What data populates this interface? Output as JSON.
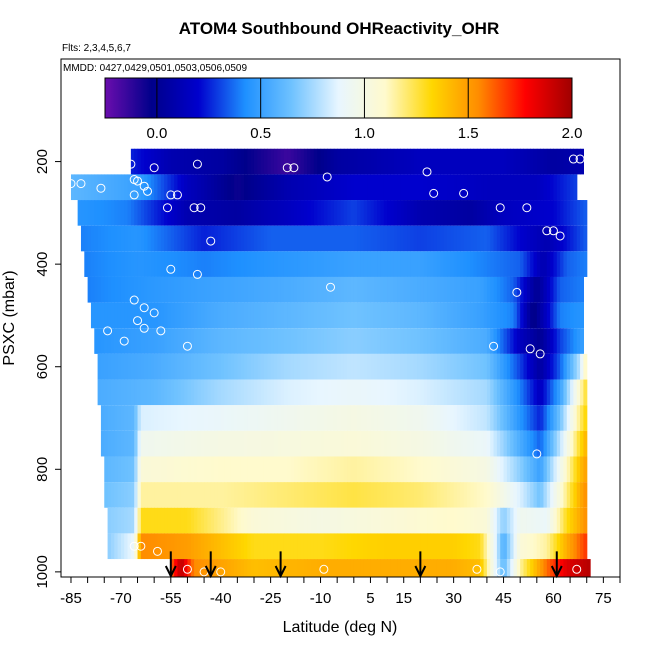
{
  "chart_data": {
    "type": "heatmap",
    "title": "ATOM4 Southbound OHReactivity_OHR",
    "flights_text": "Flts: 2,3,4,5,6,7",
    "dates_text": "MMDD: 0427,0429,0501,0503,0506,0509",
    "xlabel": "Latitude (deg N)",
    "ylabel": "PSXC (mbar)",
    "xlim": [
      -88,
      80
    ],
    "ylim": [
      1010,
      0
    ],
    "x_tick_labels": [
      "-85",
      "-70",
      "-55",
      "-40",
      "-25",
      "-10",
      "5",
      "15",
      "30",
      "45",
      "60",
      "75"
    ],
    "x_tick_values": [
      -85,
      -70,
      -55,
      -40,
      -25,
      -10,
      5,
      15,
      30,
      45,
      60,
      75
    ],
    "y_tick_labels": [
      "200",
      "400",
      "600",
      "800",
      "1000"
    ],
    "y_tick_values": [
      200,
      400,
      600,
      800,
      1000
    ],
    "colorbar": {
      "tick_labels": [
        "0.0",
        "0.5",
        "1.0",
        "1.5",
        "2.0"
      ],
      "tick_values": [
        0.0,
        0.5,
        1.0,
        1.5,
        2.0
      ],
      "range": [
        -0.25,
        2.0
      ],
      "colors": [
        "#6a0dad",
        "#00008b",
        "#0000cd",
        "#1e90ff",
        "#6fc2ff",
        "#e8f6ff",
        "#fffacd",
        "#ffd700",
        "#ff8c00",
        "#ff0000",
        "#a00000"
      ]
    },
    "bands": [
      {
        "p": 200,
        "lat_min": -67,
        "lat_max": 69,
        "edges": [
          [
            -67,
            0.25
          ],
          [
            -55,
            0.1
          ],
          [
            -40,
            0.05
          ],
          [
            -20,
            -0.15
          ],
          [
            -5,
            0.05
          ],
          [
            20,
            0.15
          ],
          [
            35,
            0.15
          ],
          [
            45,
            0.15
          ],
          [
            60,
            0.05
          ],
          [
            69,
            0.1
          ]
        ]
      },
      {
        "p": 250,
        "lat_min": -85,
        "lat_max": 67,
        "edges": [
          [
            -85,
            0.6
          ],
          [
            -65,
            0.5
          ],
          [
            -50,
            0.15
          ],
          [
            -35,
            -0.05
          ],
          [
            -20,
            0.1
          ],
          [
            0,
            0.2
          ],
          [
            20,
            0.2
          ],
          [
            40,
            0.15
          ],
          [
            55,
            0.15
          ],
          [
            67,
            0.3
          ]
        ]
      },
      {
        "p": 300,
        "lat_min": -83,
        "lat_max": 70,
        "edges": [
          [
            -83,
            0.45
          ],
          [
            -68,
            0.4
          ],
          [
            -50,
            0.1
          ],
          [
            -35,
            0.05
          ],
          [
            -20,
            0.15
          ],
          [
            0,
            0.3
          ],
          [
            20,
            0.1
          ],
          [
            35,
            0.05
          ],
          [
            45,
            0.15
          ],
          [
            60,
            0.2
          ],
          [
            70,
            0.35
          ]
        ]
      },
      {
        "p": 350,
        "lat_min": -82,
        "lat_max": 70,
        "edges": [
          [
            -82,
            0.4
          ],
          [
            -65,
            0.45
          ],
          [
            -45,
            0.25
          ],
          [
            -25,
            0.35
          ],
          [
            0,
            0.35
          ],
          [
            20,
            0.3
          ],
          [
            40,
            0.35
          ],
          [
            50,
            0.2
          ],
          [
            58,
            0.1
          ],
          [
            70,
            0.35
          ]
        ]
      },
      {
        "p": 400,
        "lat_min": -81,
        "lat_max": 70,
        "edges": [
          [
            -81,
            0.4
          ],
          [
            -65,
            0.45
          ],
          [
            -45,
            0.4
          ],
          [
            -25,
            0.45
          ],
          [
            0,
            0.5
          ],
          [
            20,
            0.5
          ],
          [
            40,
            0.4
          ],
          [
            50,
            0.35
          ],
          [
            57,
            0.1
          ],
          [
            64,
            0.35
          ],
          [
            70,
            0.4
          ]
        ]
      },
      {
        "p": 450,
        "lat_min": -80,
        "lat_max": 69,
        "edges": [
          [
            -80,
            0.4
          ],
          [
            -65,
            0.45
          ],
          [
            -45,
            0.5
          ],
          [
            -20,
            0.55
          ],
          [
            0,
            0.6
          ],
          [
            20,
            0.55
          ],
          [
            38,
            0.5
          ],
          [
            48,
            0.35
          ],
          [
            55,
            0.0
          ],
          [
            62,
            0.35
          ],
          [
            69,
            0.4
          ]
        ]
      },
      {
        "p": 500,
        "lat_min": -79,
        "lat_max": 69,
        "edges": [
          [
            -79,
            0.45
          ],
          [
            -60,
            0.45
          ],
          [
            -40,
            0.55
          ],
          [
            -20,
            0.6
          ],
          [
            0,
            0.65
          ],
          [
            20,
            0.6
          ],
          [
            38,
            0.5
          ],
          [
            48,
            0.4
          ],
          [
            54,
            -0.05
          ],
          [
            62,
            0.4
          ],
          [
            69,
            0.45
          ]
        ]
      },
      {
        "p": 550,
        "lat_min": -78,
        "lat_max": 69,
        "edges": [
          [
            -78,
            0.45
          ],
          [
            -60,
            0.5
          ],
          [
            -40,
            0.6
          ],
          [
            -20,
            0.65
          ],
          [
            0,
            0.7
          ],
          [
            20,
            0.65
          ],
          [
            40,
            0.55
          ],
          [
            50,
            0.15
          ],
          [
            56,
            0.0
          ],
          [
            62,
            0.3
          ],
          [
            69,
            0.5
          ]
        ]
      },
      {
        "p": 600,
        "lat_min": -77,
        "lat_max": 70,
        "edges": [
          [
            -77,
            0.5
          ],
          [
            -60,
            0.55
          ],
          [
            -40,
            0.65
          ],
          [
            -20,
            0.75
          ],
          [
            0,
            0.8
          ],
          [
            20,
            0.75
          ],
          [
            40,
            0.65
          ],
          [
            50,
            0.3
          ],
          [
            56,
            0.05
          ],
          [
            62,
            0.35
          ],
          [
            68,
            0.8
          ],
          [
            70,
            1.2
          ]
        ]
      },
      {
        "p": 650,
        "lat_min": -77,
        "lat_max": 70,
        "edges": [
          [
            -77,
            0.55
          ],
          [
            -60,
            0.6
          ],
          [
            -40,
            0.75
          ],
          [
            -20,
            0.85
          ],
          [
            0,
            0.9
          ],
          [
            20,
            0.85
          ],
          [
            40,
            0.75
          ],
          [
            50,
            0.4
          ],
          [
            56,
            0.15
          ],
          [
            62,
            0.5
          ],
          [
            68,
            1.1
          ],
          [
            70,
            1.3
          ]
        ]
      },
      {
        "p": 700,
        "lat_min": -76,
        "lat_max": 70,
        "edges": [
          [
            -76,
            0.55
          ],
          [
            -66,
            0.6
          ],
          [
            -64,
            0.85
          ],
          [
            -40,
            0.9
          ],
          [
            -20,
            0.95
          ],
          [
            0,
            1.0
          ],
          [
            20,
            0.95
          ],
          [
            40,
            0.8
          ],
          [
            50,
            0.45
          ],
          [
            56,
            0.25
          ],
          [
            62,
            0.65
          ],
          [
            68,
            1.2
          ],
          [
            70,
            1.35
          ]
        ]
      },
      {
        "p": 750,
        "lat_min": -76,
        "lat_max": 70,
        "edges": [
          [
            -76,
            0.55
          ],
          [
            -66,
            0.6
          ],
          [
            -64,
            0.95
          ],
          [
            -40,
            1.0
          ],
          [
            -20,
            1.02
          ],
          [
            0,
            1.05
          ],
          [
            20,
            1.0
          ],
          [
            40,
            0.9
          ],
          [
            50,
            0.55
          ],
          [
            56,
            0.35
          ],
          [
            62,
            0.8
          ],
          [
            68,
            1.3
          ],
          [
            70,
            1.45
          ]
        ]
      },
      {
        "p": 800,
        "lat_min": -75,
        "lat_max": 70,
        "edges": [
          [
            -75,
            0.6
          ],
          [
            -66,
            0.65
          ],
          [
            -64,
            1.05
          ],
          [
            -40,
            1.1
          ],
          [
            -20,
            1.1
          ],
          [
            0,
            1.15
          ],
          [
            20,
            1.1
          ],
          [
            40,
            1.0
          ],
          [
            50,
            0.7
          ],
          [
            56,
            0.5
          ],
          [
            62,
            0.95
          ],
          [
            68,
            1.4
          ],
          [
            70,
            1.5
          ]
        ]
      },
      {
        "p": 850,
        "lat_min": -75,
        "lat_max": 70,
        "edges": [
          [
            -75,
            0.65
          ],
          [
            -66,
            0.7
          ],
          [
            -64,
            1.15
          ],
          [
            -40,
            1.15
          ],
          [
            -20,
            1.2
          ],
          [
            0,
            1.25
          ],
          [
            20,
            1.2
          ],
          [
            40,
            1.1
          ],
          [
            50,
            0.85
          ],
          [
            56,
            0.65
          ],
          [
            62,
            1.05
          ],
          [
            68,
            1.45
          ],
          [
            70,
            1.55
          ]
        ]
      },
      {
        "p": 900,
        "lat_min": -74,
        "lat_max": 70,
        "edges": [
          [
            -74,
            0.7
          ],
          [
            -66,
            0.75
          ],
          [
            -64,
            1.3
          ],
          [
            -50,
            1.3
          ],
          [
            -30,
            1.05
          ],
          [
            -10,
            1.0
          ],
          [
            10,
            1.05
          ],
          [
            30,
            1.1
          ],
          [
            40,
            1.05
          ],
          [
            45,
            0.7
          ],
          [
            50,
            0.95
          ],
          [
            58,
            0.9
          ],
          [
            64,
            1.3
          ],
          [
            70,
            1.55
          ]
        ]
      },
      {
        "p": 950,
        "lat_min": -74,
        "lat_max": 70,
        "edges": [
          [
            -74,
            0.7
          ],
          [
            -66,
            0.9
          ],
          [
            -64,
            1.55
          ],
          [
            -50,
            1.5
          ],
          [
            -30,
            1.3
          ],
          [
            -10,
            1.3
          ],
          [
            10,
            1.35
          ],
          [
            30,
            1.35
          ],
          [
            38,
            1.3
          ],
          [
            42,
            0.95
          ],
          [
            45,
            0.55
          ],
          [
            50,
            1.05
          ],
          [
            58,
            1.15
          ],
          [
            64,
            1.45
          ],
          [
            70,
            1.7
          ]
        ]
      },
      {
        "p": 1000,
        "lat_min": -55,
        "lat_max": 71,
        "edges": [
          [
            -55,
            1.6
          ],
          [
            -52,
            1.95
          ],
          [
            -48,
            1.55
          ],
          [
            -30,
            1.4
          ],
          [
            -10,
            1.45
          ],
          [
            10,
            1.45
          ],
          [
            30,
            1.45
          ],
          [
            38,
            1.4
          ],
          [
            42,
            0.95
          ],
          [
            45,
            0.6
          ],
          [
            50,
            1.15
          ],
          [
            58,
            1.6
          ],
          [
            64,
            1.85
          ],
          [
            71,
            1.95
          ]
        ]
      }
    ],
    "arrows_lat": [
      -55,
      -43,
      -22,
      20,
      61
    ],
    "points": [
      [
        -67,
        205
      ],
      [
        -60,
        212
      ],
      [
        -47,
        205
      ],
      [
        -20,
        212
      ],
      [
        -18,
        212
      ],
      [
        -8,
        230
      ],
      [
        22,
        220
      ],
      [
        66,
        195
      ],
      [
        68,
        195
      ],
      [
        -85,
        243
      ],
      [
        -82,
        243
      ],
      [
        -76,
        252
      ],
      [
        -66,
        235
      ],
      [
        -65,
        238
      ],
      [
        -63,
        248
      ],
      [
        -62,
        258
      ],
      [
        -66,
        265
      ],
      [
        -55,
        265
      ],
      [
        -53,
        265
      ],
      [
        -48,
        290
      ],
      [
        -46,
        290
      ],
      [
        -56,
        290
      ],
      [
        -43,
        355
      ],
      [
        24,
        262
      ],
      [
        33,
        262
      ],
      [
        44,
        290
      ],
      [
        52,
        290
      ],
      [
        58,
        335
      ],
      [
        60,
        335
      ],
      [
        62,
        345
      ],
      [
        -55,
        410
      ],
      [
        -47,
        420
      ],
      [
        -7,
        445
      ],
      [
        49,
        455
      ],
      [
        -66,
        470
      ],
      [
        -65,
        510
      ],
      [
        -63,
        485
      ],
      [
        -60,
        495
      ],
      [
        -63,
        525
      ],
      [
        -69,
        550
      ],
      [
        -74,
        530
      ],
      [
        -58,
        530
      ],
      [
        -50,
        560
      ],
      [
        42,
        560
      ],
      [
        53,
        565
      ],
      [
        56,
        575
      ],
      [
        55,
        770
      ],
      [
        -66,
        950
      ],
      [
        -64,
        950
      ],
      [
        -59,
        960
      ],
      [
        -50,
        995
      ],
      [
        -45,
        1000
      ],
      [
        -40,
        1000
      ],
      [
        -9,
        995
      ],
      [
        37,
        995
      ],
      [
        44,
        1000
      ],
      [
        67,
        995
      ]
    ]
  }
}
